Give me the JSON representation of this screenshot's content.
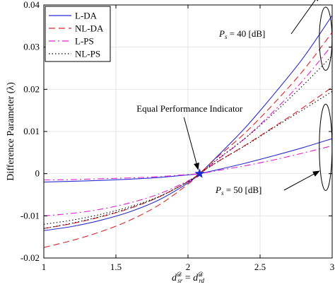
{
  "chart_data": {
    "type": "line",
    "xlabel_parts": {
      "d": "d",
      "sub_sr": "sr",
      "sup": "𝒟",
      "eq": " = ",
      "sub_rd": "rd"
    },
    "ylabel": "Difference Parameter (λ)",
    "xlim": [
      1,
      3
    ],
    "ylim": [
      -0.02,
      0.04
    ],
    "xticks": [
      1,
      1.5,
      2,
      2.5,
      3
    ],
    "xtick_labels": [
      "1",
      "1.5",
      "2",
      "2.5",
      "3"
    ],
    "yticks": [
      -0.02,
      -0.01,
      0,
      0.01,
      0.02,
      0.03,
      0.04
    ],
    "ytick_labels": [
      "-0.02",
      "-0.01",
      "0",
      "0.01",
      "0.02",
      "0.03",
      "0.04"
    ],
    "grid": true,
    "legend_position": "top-left",
    "legend": [
      "L-DA",
      "NL-DA",
      "L-PS",
      "NL-PS"
    ],
    "series_styles": [
      {
        "legend": "L-DA",
        "color": "#2b2bd4",
        "dash": ""
      },
      {
        "legend": "NL-DA",
        "color": "#e0242a",
        "dash": "9,5"
      },
      {
        "legend": "L-PS",
        "color": "#e020d0",
        "dash": "9,4,2,4"
      },
      {
        "legend": "NL-PS",
        "color": "#000000",
        "dash": "1.5,3"
      }
    ],
    "x": [
      1.0,
      1.2,
      1.4,
      1.6,
      1.8,
      2.0,
      2.08,
      2.2,
      2.4,
      2.6,
      2.8,
      3.0
    ],
    "curve_groups": [
      {
        "group": "Ps = 40 dB",
        "series": [
          {
            "legend": "L-DA",
            "values": [
              -0.0135,
              -0.0125,
              -0.011,
              -0.009,
              -0.0062,
              -0.0022,
              0.0,
              0.004,
              0.011,
              0.019,
              0.0275,
              0.0375
            ]
          },
          {
            "legend": "NL-DA",
            "values": [
              -0.0175,
              -0.0158,
              -0.0137,
              -0.011,
              -0.0074,
              -0.0025,
              0.0,
              0.0038,
              0.0098,
              0.0168,
              0.0245,
              0.0335
            ]
          },
          {
            "legend": "L-PS",
            "values": [
              -0.01,
              -0.0094,
              -0.0084,
              -0.0069,
              -0.0048,
              -0.0017,
              0.0,
              0.0032,
              0.0085,
              0.015,
              0.0222,
              0.0305
            ]
          },
          {
            "legend": "NL-PS",
            "values": [
              -0.012,
              -0.011,
              -0.0096,
              -0.0078,
              -0.0054,
              -0.0019,
              0.0,
              0.0033,
              0.0085,
              0.0145,
              0.021,
              0.028
            ]
          }
        ]
      },
      {
        "group": "Ps = 50 dB",
        "series": [
          {
            "legend": "L-DA",
            "values": [
              -0.002,
              -0.0018,
              -0.0016,
              -0.0013,
              -0.0009,
              -0.0003,
              0.0,
              0.0009,
              0.0025,
              0.0043,
              0.0062,
              0.0083
            ]
          },
          {
            "legend": "NL-DA",
            "values": [
              -0.013,
              -0.0118,
              -0.0102,
              -0.0082,
              -0.0055,
              -0.0019,
              0.0,
              0.0027,
              0.0068,
              0.0112,
              0.0157,
              0.0205
            ]
          },
          {
            "legend": "L-PS",
            "values": [
              -0.0015,
              -0.0014,
              -0.0012,
              -0.001,
              -0.0007,
              -0.0002,
              0.0,
              0.0007,
              0.0019,
              0.0033,
              0.0049,
              0.0066
            ]
          },
          {
            "legend": "NL-PS",
            "values": [
              -0.013,
              -0.0117,
              -0.0101,
              -0.0081,
              -0.0055,
              -0.0019,
              0.0,
              0.0027,
              0.0067,
              0.011,
              0.0152,
              0.0195
            ]
          }
        ]
      }
    ],
    "marker": {
      "x": 2.08,
      "y": 0.0,
      "label": "Equal Performance Indicator",
      "color": "#1a2ad0"
    },
    "annotations": [
      {
        "group": "Ps = 40 dB",
        "P": "P",
        "sub": "s",
        "rest": " = 40 [dB]",
        "ellipse_y": [
          0.0245,
          0.0395
        ]
      },
      {
        "group": "Ps = 50 dB",
        "P": "P",
        "sub": "s",
        "rest": " = 50 [dB]",
        "ellipse_y": [
          -0.004,
          0.0165
        ]
      }
    ]
  }
}
